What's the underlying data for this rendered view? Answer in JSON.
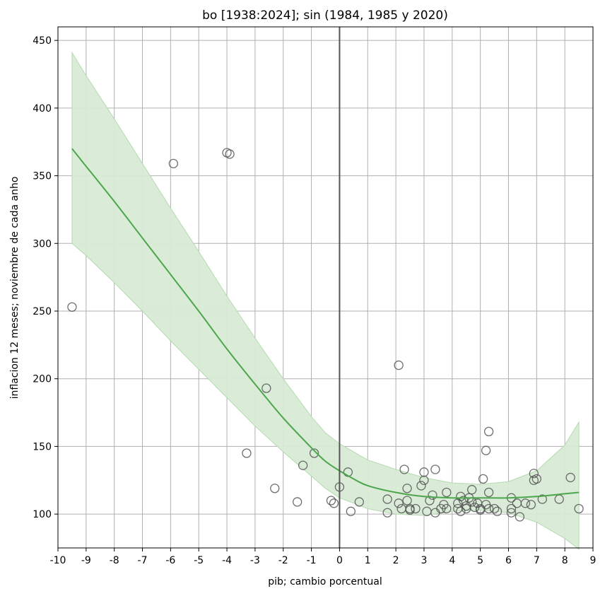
{
  "chart_data": {
    "type": "scatter",
    "title": "bo [1938:2024]; sin (1984, 1985 y 2020)",
    "xlabel": "pib; cambio porcentual",
    "ylabel": "inflacion 12 meses; noviembre de cada anho",
    "xlim": [
      -10,
      9
    ],
    "ylim": [
      75,
      460
    ],
    "x_ticks": [
      -10,
      -9,
      -8,
      -7,
      -6,
      -5,
      -4,
      -3,
      -2,
      -1,
      0,
      1,
      2,
      3,
      4,
      5,
      6,
      7,
      8,
      9
    ],
    "x_tick_labels": [
      "-10",
      "-9",
      "-8",
      "-7",
      "-6",
      "-5",
      "-4",
      "-3",
      "-2",
      "-1",
      "0",
      "1",
      "2",
      "3",
      "4",
      "5",
      "6",
      "7",
      "8",
      "9"
    ],
    "y_ticks": [
      100,
      150,
      200,
      250,
      300,
      350,
      400,
      450
    ],
    "y_tick_labels": [
      "100",
      "150",
      "200",
      "250",
      "300",
      "350",
      "400",
      "450"
    ],
    "grid": true,
    "reference_line_x": 0,
    "colors": {
      "fit_line": "#4ca64c",
      "band_fill": "#d8ead6",
      "band_edge": "#b5dbb0",
      "points": "#555555",
      "grid": "#b0b0b0",
      "zero_line": "#555555"
    },
    "points": [
      {
        "x": -9.5,
        "y": 253
      },
      {
        "x": -5.9,
        "y": 359
      },
      {
        "x": -4.0,
        "y": 367
      },
      {
        "x": -3.9,
        "y": 366
      },
      {
        "x": -3.3,
        "y": 145
      },
      {
        "x": -2.6,
        "y": 193
      },
      {
        "x": -2.3,
        "y": 119
      },
      {
        "x": -1.5,
        "y": 109
      },
      {
        "x": -1.3,
        "y": 136
      },
      {
        "x": -0.9,
        "y": 145
      },
      {
        "x": -0.3,
        "y": 110
      },
      {
        "x": -0.2,
        "y": 108
      },
      {
        "x": 0.0,
        "y": 120
      },
      {
        "x": 0.3,
        "y": 131
      },
      {
        "x": 0.4,
        "y": 102
      },
      {
        "x": 0.7,
        "y": 109
      },
      {
        "x": 1.7,
        "y": 111
      },
      {
        "x": 1.7,
        "y": 101
      },
      {
        "x": 2.1,
        "y": 108
      },
      {
        "x": 2.1,
        "y": 210
      },
      {
        "x": 2.2,
        "y": 104
      },
      {
        "x": 2.3,
        "y": 133
      },
      {
        "x": 2.4,
        "y": 119
      },
      {
        "x": 2.4,
        "y": 110
      },
      {
        "x": 2.5,
        "y": 104
      },
      {
        "x": 2.5,
        "y": 103
      },
      {
        "x": 2.7,
        "y": 104
      },
      {
        "x": 2.9,
        "y": 121
      },
      {
        "x": 3.0,
        "y": 131
      },
      {
        "x": 3.0,
        "y": 125
      },
      {
        "x": 3.1,
        "y": 102
      },
      {
        "x": 3.2,
        "y": 110
      },
      {
        "x": 3.3,
        "y": 114
      },
      {
        "x": 3.4,
        "y": 133
      },
      {
        "x": 3.4,
        "y": 101
      },
      {
        "x": 3.6,
        "y": 104
      },
      {
        "x": 3.7,
        "y": 107
      },
      {
        "x": 3.8,
        "y": 116
      },
      {
        "x": 3.8,
        "y": 104
      },
      {
        "x": 4.2,
        "y": 108
      },
      {
        "x": 4.2,
        "y": 104
      },
      {
        "x": 4.3,
        "y": 102
      },
      {
        "x": 4.3,
        "y": 113
      },
      {
        "x": 4.4,
        "y": 110
      },
      {
        "x": 4.5,
        "y": 106
      },
      {
        "x": 4.5,
        "y": 104
      },
      {
        "x": 4.6,
        "y": 112
      },
      {
        "x": 4.7,
        "y": 118
      },
      {
        "x": 4.7,
        "y": 109
      },
      {
        "x": 4.8,
        "y": 105
      },
      {
        "x": 4.9,
        "y": 108
      },
      {
        "x": 5.0,
        "y": 104
      },
      {
        "x": 5.0,
        "y": 103
      },
      {
        "x": 5.1,
        "y": 126
      },
      {
        "x": 5.2,
        "y": 147
      },
      {
        "x": 5.2,
        "y": 107
      },
      {
        "x": 5.3,
        "y": 104
      },
      {
        "x": 5.3,
        "y": 116
      },
      {
        "x": 5.3,
        "y": 161
      },
      {
        "x": 5.5,
        "y": 104
      },
      {
        "x": 5.6,
        "y": 102
      },
      {
        "x": 6.1,
        "y": 112
      },
      {
        "x": 6.1,
        "y": 104
      },
      {
        "x": 6.1,
        "y": 101
      },
      {
        "x": 6.3,
        "y": 108
      },
      {
        "x": 6.4,
        "y": 98
      },
      {
        "x": 6.6,
        "y": 108
      },
      {
        "x": 6.8,
        "y": 107
      },
      {
        "x": 6.9,
        "y": 130
      },
      {
        "x": 6.9,
        "y": 125
      },
      {
        "x": 7.0,
        "y": 126
      },
      {
        "x": 7.2,
        "y": 111
      },
      {
        "x": 7.8,
        "y": 111
      },
      {
        "x": 8.2,
        "y": 127
      },
      {
        "x": 8.5,
        "y": 104
      }
    ],
    "fit": {
      "x": [
        -9.5,
        -9.0,
        -8.0,
        -7.0,
        -6.0,
        -5.0,
        -4.0,
        -3.0,
        -2.0,
        -1.0,
        -0.5,
        0.0,
        0.5,
        1.0,
        2.0,
        3.0,
        4.0,
        5.0,
        6.0,
        7.0,
        8.0,
        8.5
      ],
      "y": [
        370,
        357,
        331,
        304,
        277,
        250,
        222,
        196,
        171,
        149,
        139,
        132,
        126,
        121,
        116,
        113,
        112,
        112,
        112,
        113,
        115,
        116
      ],
      "lower": [
        300,
        291,
        271,
        250,
        228,
        207,
        186,
        165,
        146,
        128,
        119,
        112,
        108,
        104,
        100,
        99,
        102,
        103,
        101,
        94,
        82,
        74
      ],
      "upper": [
        441,
        424,
        392,
        359,
        326,
        294,
        261,
        230,
        200,
        172,
        160,
        152,
        146,
        140,
        133,
        127,
        123,
        122,
        124,
        132,
        151,
        168
      ]
    }
  }
}
